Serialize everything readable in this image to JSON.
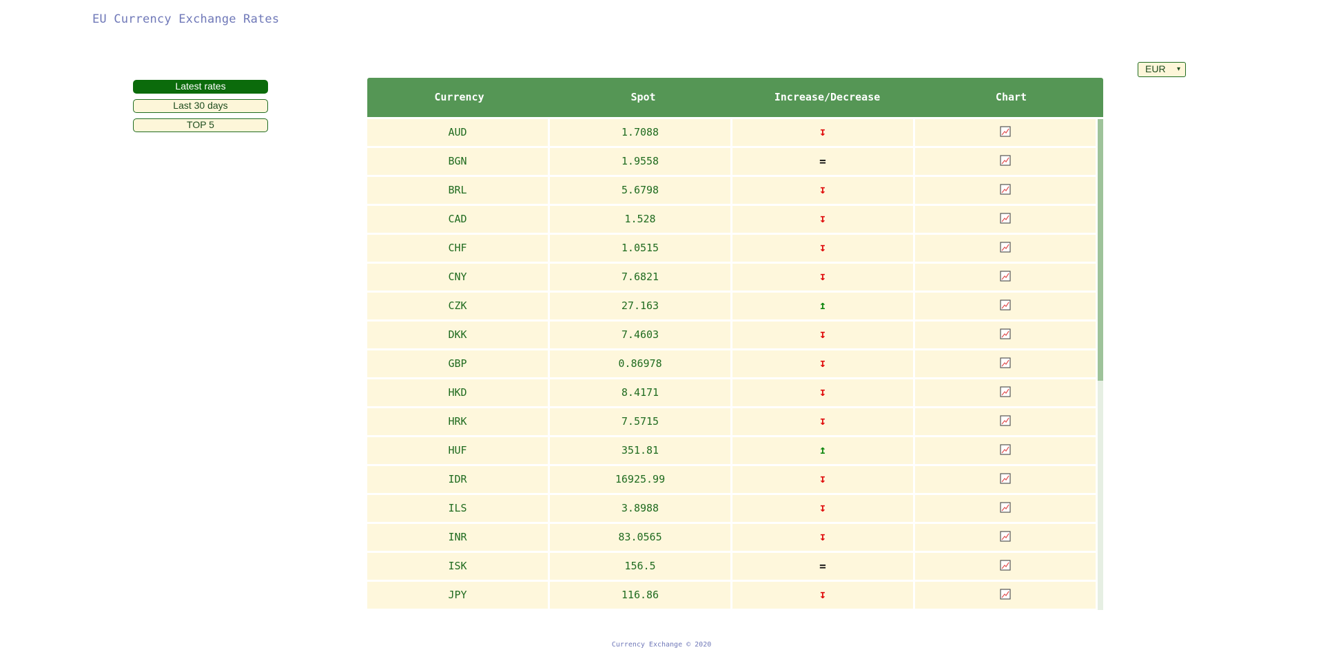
{
  "app_title": "EU Currency Exchange Rates",
  "nav": {
    "items": [
      {
        "label": "Latest rates",
        "active": true
      },
      {
        "label": "Last 30 days",
        "active": false
      },
      {
        "label": "TOP 5",
        "active": false
      }
    ]
  },
  "base_currency": {
    "selected": "EUR",
    "caret": "▾"
  },
  "table": {
    "headers": [
      "Currency",
      "Spot",
      "Increase/Decrease",
      "Chart"
    ],
    "rows": [
      {
        "currency": "AUD",
        "spot": "1.7088",
        "trend": "down"
      },
      {
        "currency": "BGN",
        "spot": "1.9558",
        "trend": "equal"
      },
      {
        "currency": "BRL",
        "spot": "5.6798",
        "trend": "down"
      },
      {
        "currency": "CAD",
        "spot": "1.528",
        "trend": "down"
      },
      {
        "currency": "CHF",
        "spot": "1.0515",
        "trend": "down"
      },
      {
        "currency": "CNY",
        "spot": "7.6821",
        "trend": "down"
      },
      {
        "currency": "CZK",
        "spot": "27.163",
        "trend": "up"
      },
      {
        "currency": "DKK",
        "spot": "7.4603",
        "trend": "down"
      },
      {
        "currency": "GBP",
        "spot": "0.86978",
        "trend": "down"
      },
      {
        "currency": "HKD",
        "spot": "8.4171",
        "trend": "down"
      },
      {
        "currency": "HRK",
        "spot": "7.5715",
        "trend": "down"
      },
      {
        "currency": "HUF",
        "spot": "351.81",
        "trend": "up"
      },
      {
        "currency": "IDR",
        "spot": "16925.99",
        "trend": "down"
      },
      {
        "currency": "ILS",
        "spot": "3.8988",
        "trend": "down"
      },
      {
        "currency": "INR",
        "spot": "83.0565",
        "trend": "down"
      },
      {
        "currency": "ISK",
        "spot": "156.5",
        "trend": "equal"
      },
      {
        "currency": "JPY",
        "spot": "116.86",
        "trend": "down"
      }
    ]
  },
  "trend_symbols": {
    "down": "↧",
    "up": "↥",
    "equal": "="
  },
  "icons": {
    "chart": "line-chart-icon"
  },
  "colors": {
    "header_bg": "#559655",
    "cell_bg": "#fef7dc",
    "text_green": "#1f6b1f",
    "down": "#e01010",
    "up": "#118811",
    "title": "#6f78b8"
  },
  "footer": "Currency Exchange © 2020"
}
